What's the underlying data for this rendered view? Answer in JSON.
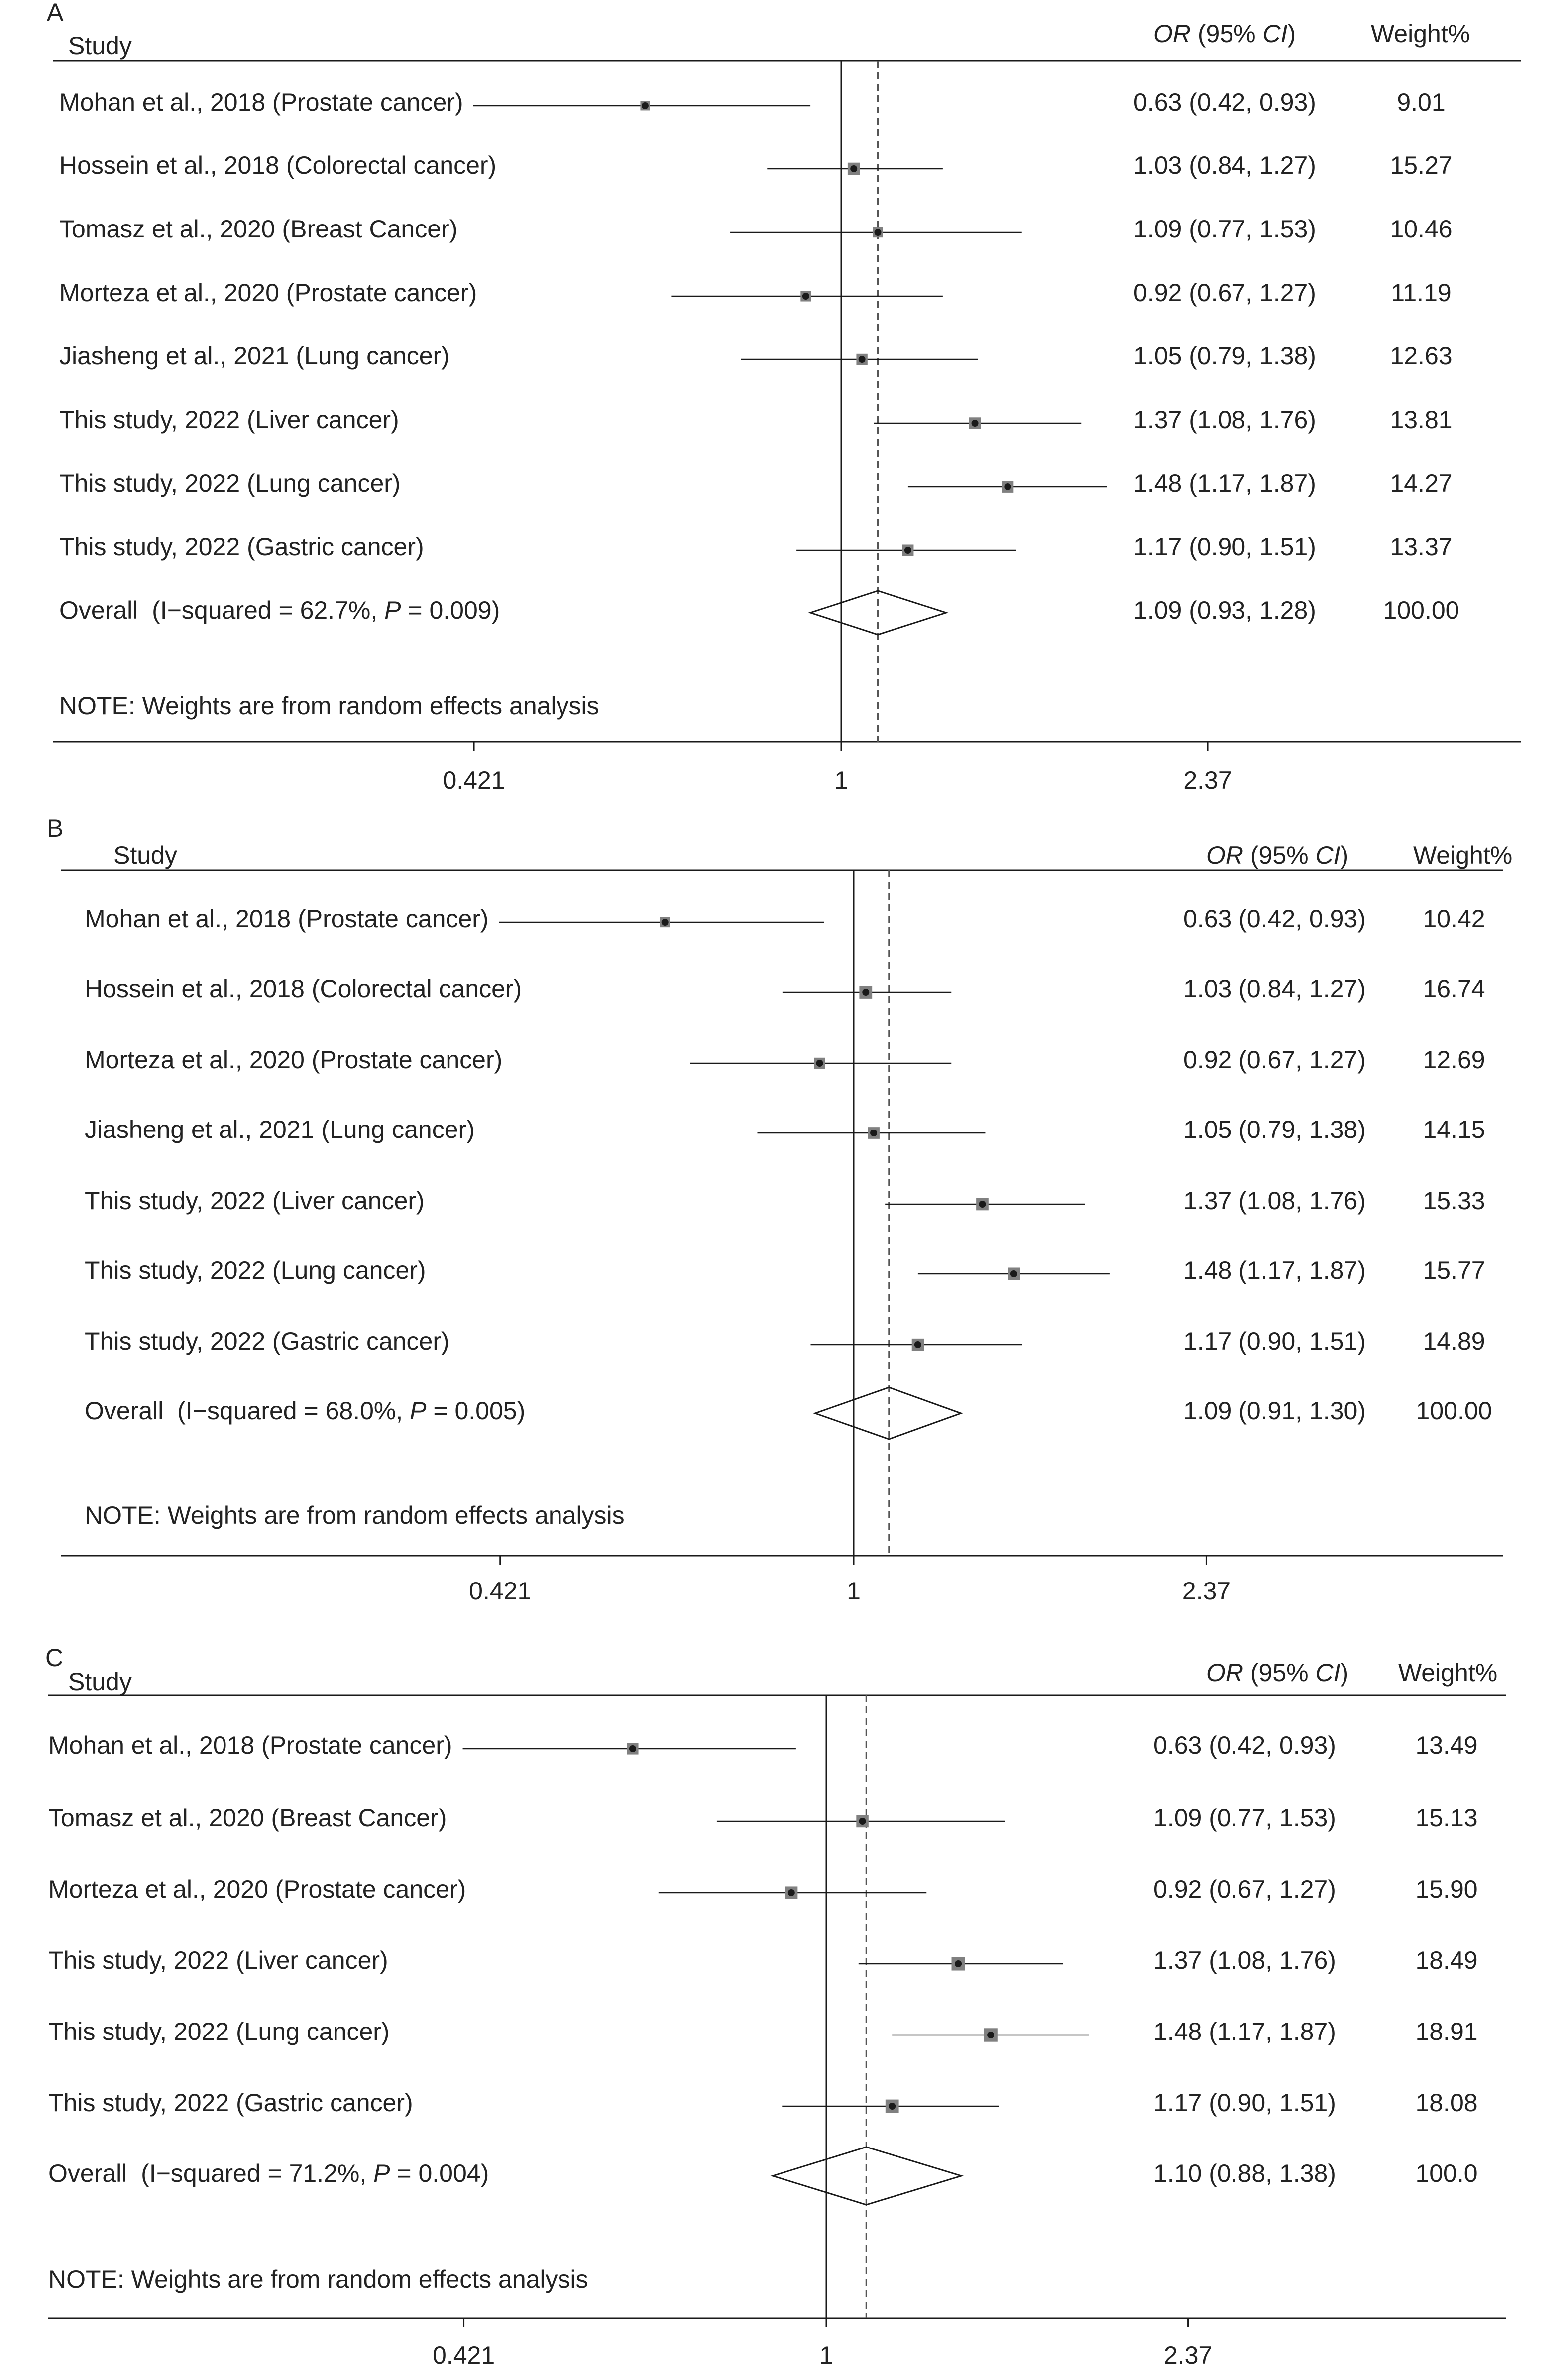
{
  "colors": {
    "background": "#ffffff",
    "text": "#222222",
    "line": "#1a1a1a",
    "dashed_line": "#555555",
    "marker_fill": "#808080",
    "marker_point": "#1a1a1a"
  },
  "chart_data": [
    {
      "type": "scatter",
      "panel_label": "A",
      "columns": {
        "study": "Study",
        "effect": "OR (95% CI)",
        "weight": "Weight%"
      },
      "x_scale": "log",
      "xtick_labels": [
        "0.421",
        "1",
        "2.37"
      ],
      "reference_line": 1,
      "studies": [
        {
          "label": "Mohan et al., 2018 (Prostate cancer)",
          "or": 0.63,
          "ci_low": 0.42,
          "ci_high": 0.93,
          "weight": "9.01"
        },
        {
          "label": "Hossein et al., 2018 (Colorectal cancer)",
          "or": 1.03,
          "ci_low": 0.84,
          "ci_high": 1.27,
          "weight": "15.27"
        },
        {
          "label": "Tomasz et al., 2020 (Breast Cancer)",
          "or": 1.09,
          "ci_low": 0.77,
          "ci_high": 1.53,
          "weight": "10.46"
        },
        {
          "label": "Morteza et al., 2020 (Prostate cancer)",
          "or": 0.92,
          "ci_low": 0.67,
          "ci_high": 1.27,
          "weight": "11.19"
        },
        {
          "label": "Jiasheng et al., 2021 (Lung cancer)",
          "or": 1.05,
          "ci_low": 0.79,
          "ci_high": 1.38,
          "weight": "12.63"
        },
        {
          "label": "This study, 2022 (Liver cancer)",
          "or": 1.37,
          "ci_low": 1.08,
          "ci_high": 1.76,
          "weight": "13.81"
        },
        {
          "label": "This study, 2022 (Lung cancer)",
          "or": 1.48,
          "ci_low": 1.17,
          "ci_high": 1.87,
          "weight": "14.27"
        },
        {
          "label": "This study, 2022 (Gastric cancer)",
          "or": 1.17,
          "ci_low": 0.9,
          "ci_high": 1.51,
          "weight": "13.37"
        }
      ],
      "overall": {
        "label": "Overall  (I−squared = 62.7%, P = 0.009)",
        "or": 1.09,
        "ci_low": 0.93,
        "ci_high": 1.28,
        "weight": "100.00"
      },
      "note": "NOTE: Weights are from random effects analysis"
    },
    {
      "type": "scatter",
      "panel_label": "B",
      "columns": {
        "study": "Study",
        "effect": "OR (95% CI)",
        "weight": "Weight%"
      },
      "x_scale": "log",
      "xtick_labels": [
        "0.421",
        "1",
        "2.37"
      ],
      "reference_line": 1,
      "studies": [
        {
          "label": "Mohan et al., 2018 (Prostate cancer)",
          "or": 0.63,
          "ci_low": 0.42,
          "ci_high": 0.93,
          "weight": "10.42"
        },
        {
          "label": "Hossein et al., 2018 (Colorectal cancer)",
          "or": 1.03,
          "ci_low": 0.84,
          "ci_high": 1.27,
          "weight": "16.74"
        },
        {
          "label": "Morteza et al., 2020 (Prostate cancer)",
          "or": 0.92,
          "ci_low": 0.67,
          "ci_high": 1.27,
          "weight": "12.69"
        },
        {
          "label": "Jiasheng et al., 2021 (Lung cancer)",
          "or": 1.05,
          "ci_low": 0.79,
          "ci_high": 1.38,
          "weight": "14.15"
        },
        {
          "label": "This study, 2022 (Liver cancer)",
          "or": 1.37,
          "ci_low": 1.08,
          "ci_high": 1.76,
          "weight": "15.33"
        },
        {
          "label": "This study, 2022 (Lung cancer)",
          "or": 1.48,
          "ci_low": 1.17,
          "ci_high": 1.87,
          "weight": "15.77"
        },
        {
          "label": "This study, 2022 (Gastric cancer)",
          "or": 1.17,
          "ci_low": 0.9,
          "ci_high": 1.51,
          "weight": "14.89"
        }
      ],
      "overall": {
        "label": "Overall  (I−squared = 68.0%, P = 0.005)",
        "or": 1.09,
        "ci_low": 0.91,
        "ci_high": 1.3,
        "weight": "100.00"
      },
      "note": "NOTE: Weights are from random effects analysis"
    },
    {
      "type": "scatter",
      "panel_label": "C",
      "columns": {
        "study": "Study",
        "effect": "OR (95% CI)",
        "weight": "Weight%"
      },
      "x_scale": "log",
      "xtick_labels": [
        "0.421",
        "1",
        "2.37"
      ],
      "reference_line": 1,
      "studies": [
        {
          "label": "Mohan et al., 2018 (Prostate cancer)",
          "or": 0.63,
          "ci_low": 0.42,
          "ci_high": 0.93,
          "weight": "13.49"
        },
        {
          "label": "Tomasz et al., 2020 (Breast Cancer)",
          "or": 1.09,
          "ci_low": 0.77,
          "ci_high": 1.53,
          "weight": "15.13"
        },
        {
          "label": "Morteza et al., 2020 (Prostate cancer)",
          "or": 0.92,
          "ci_low": 0.67,
          "ci_high": 1.27,
          "weight": "15.90"
        },
        {
          "label": "This study, 2022 (Liver cancer)",
          "or": 1.37,
          "ci_low": 1.08,
          "ci_high": 1.76,
          "weight": "18.49"
        },
        {
          "label": "This study, 2022 (Lung cancer)",
          "or": 1.48,
          "ci_low": 1.17,
          "ci_high": 1.87,
          "weight": "18.91"
        },
        {
          "label": "This study, 2022 (Gastric cancer)",
          "or": 1.17,
          "ci_low": 0.9,
          "ci_high": 1.51,
          "weight": "18.08"
        }
      ],
      "overall": {
        "label": "Overall  (I−squared = 71.2%, P = 0.004)",
        "or": 1.1,
        "ci_low": 0.88,
        "ci_high": 1.38,
        "weight": "100.0"
      },
      "note": "NOTE: Weights are from random effects analysis"
    }
  ]
}
